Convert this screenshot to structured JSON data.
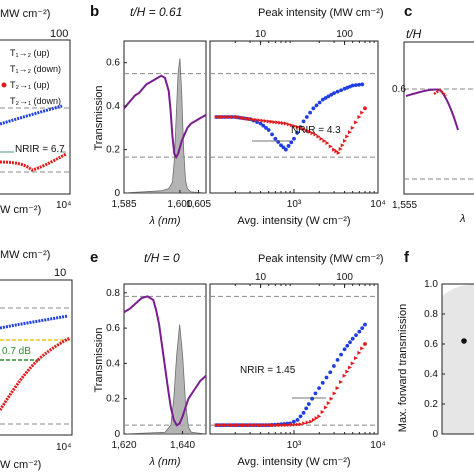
{
  "panels": {
    "b": {
      "letter": "b",
      "tH": "t/H = 0.61"
    },
    "c": {
      "letter": "c",
      "tH_prefix": "t/H"
    },
    "e": {
      "letter": "e",
      "tH": "t/H = 0"
    },
    "f": {
      "letter": "f",
      "ylabel": "Max. forward transmission",
      "yticks": [
        "0",
        "0.2",
        "0.4",
        "0.6",
        "0.8",
        "1.0"
      ]
    }
  },
  "top_left_fragment": {
    "top_axis_title": "MW cm⁻²)",
    "top_tick": "100",
    "legend": [
      "T₁→₂ (up)",
      "T₁→₂ (down)",
      "T₂→₁ (up)",
      "T₂→₁ (down)"
    ],
    "nrir": "NRIR = 6.7",
    "xlabel": "W cm⁻²)",
    "xtick": "10⁴"
  },
  "bottom_left_fragment": {
    "top_axis_title": "MW cm⁻²)",
    "top_tick": "10",
    "db_label": "0.7 dB",
    "xlabel": "W cm⁻²)",
    "xtick": "10⁴"
  },
  "panel_c_fragment": {
    "ytick": "0.6",
    "xtick": "1,555",
    "xlabel": "λ"
  },
  "colors": {
    "purple": "#7a1d8f",
    "blue": "#1f3fe0",
    "red": "#e31a1c",
    "grey": "#a8a8a8",
    "green": "#2e8b2e",
    "yellow": "#e8c21a"
  },
  "chart_data": [
    {
      "type": "line",
      "panel": "b-left",
      "xlabel": "λ (nm)",
      "ylabel": "Transmission",
      "xticks": [
        "1,585",
        "1,600",
        "1,605"
      ],
      "yticks": [
        "0",
        "0.2",
        "0.4",
        "0.6"
      ],
      "xlim": [
        1585,
        1607
      ],
      "ylim": [
        0,
        0.7
      ],
      "dashed_y": [
        0.55,
        0.165
      ],
      "transmission": {
        "x": [
          1585,
          1586,
          1587,
          1588,
          1589,
          1590,
          1591,
          1592,
          1593,
          1594,
          1595,
          1596,
          1597,
          1597.5,
          1598,
          1598.5,
          1599,
          1599.5,
          1600,
          1600.5,
          1601,
          1601.5,
          1602,
          1603,
          1604,
          1605,
          1606,
          1607
        ],
        "y": [
          0.39,
          0.41,
          0.43,
          0.45,
          0.46,
          0.48,
          0.5,
          0.51,
          0.52,
          0.53,
          0.54,
          0.53,
          0.47,
          0.38,
          0.26,
          0.18,
          0.165,
          0.18,
          0.21,
          0.24,
          0.26,
          0.28,
          0.3,
          0.32,
          0.33,
          0.34,
          0.35,
          0.36
        ]
      },
      "spectrum": {
        "x": [
          1585,
          1595,
          1597,
          1598,
          1598.5,
          1599,
          1599.5,
          1600,
          1600.5,
          1601,
          1601.5,
          1602,
          1603,
          1607
        ],
        "y": [
          0,
          0.01,
          0.02,
          0.05,
          0.15,
          0.35,
          0.55,
          0.62,
          0.45,
          0.2,
          0.06,
          0.02,
          0.005,
          0
        ]
      }
    },
    {
      "type": "scatter",
      "panel": "b-right",
      "xlabel": "Avg. intensity (W cm⁻²)",
      "top_xlabel": "Peak intensity (MW cm⁻²)",
      "top_xticks": [
        "10",
        "100"
      ],
      "xticks": [
        "10³",
        "10⁴"
      ],
      "xlog": true,
      "xlim": [
        100,
        10000
      ],
      "ylim": [
        0,
        0.7
      ],
      "dashed_y": [
        0.55,
        0.165
      ],
      "annotation": "NRIR = 4.3",
      "series": [
        {
          "x": [
            120,
            150,
            200,
            300,
            400,
            500,
            600,
            700,
            800,
            1000,
            1300,
            1700,
            2200,
            3000,
            4000,
            5000,
            6500
          ],
          "y": [
            0.35,
            0.35,
            0.35,
            0.34,
            0.32,
            0.29,
            0.25,
            0.22,
            0.2,
            0.25,
            0.33,
            0.39,
            0.43,
            0.46,
            0.48,
            0.495,
            0.5
          ]
        },
        {
          "x": [
            120,
            150,
            200,
            300,
            500,
            800,
            1200,
            1800,
            2500,
            3000,
            3400,
            3800,
            4300,
            5000,
            6000,
            7000
          ],
          "y": [
            0.35,
            0.35,
            0.35,
            0.34,
            0.33,
            0.32,
            0.3,
            0.27,
            0.23,
            0.2,
            0.185,
            0.22,
            0.26,
            0.3,
            0.35,
            0.39
          ]
        }
      ]
    },
    {
      "type": "line",
      "panel": "e-left",
      "xlabel": "λ (nm)",
      "ylabel": "Transmission",
      "xticks": [
        "1,620",
        "1,640"
      ],
      "yticks": [
        "0",
        "0.2",
        "0.4",
        "0.6",
        "0.8"
      ],
      "xlim": [
        1620,
        1648
      ],
      "ylim": [
        0,
        0.85
      ],
      "dashed_y": [
        0.78,
        0.05
      ],
      "transmission": {
        "x": [
          1620,
          1622,
          1624,
          1626,
          1628,
          1629,
          1630,
          1631,
          1632,
          1633,
          1634,
          1635,
          1636,
          1637,
          1638,
          1639,
          1640,
          1641,
          1642,
          1644,
          1646,
          1648
        ],
        "y": [
          0.69,
          0.71,
          0.74,
          0.77,
          0.78,
          0.77,
          0.76,
          0.7,
          0.62,
          0.5,
          0.38,
          0.26,
          0.15,
          0.08,
          0.05,
          0.06,
          0.1,
          0.15,
          0.2,
          0.25,
          0.3,
          0.33
        ]
      },
      "spectrum": {
        "x": [
          1620,
          1634,
          1636,
          1637,
          1638,
          1639,
          1640,
          1641,
          1642,
          1643,
          1648
        ],
        "y": [
          0,
          0.01,
          0.05,
          0.2,
          0.45,
          0.62,
          0.45,
          0.18,
          0.04,
          0.01,
          0
        ]
      }
    },
    {
      "type": "scatter",
      "panel": "e-right",
      "xlabel": "Avg. intensity (W cm⁻²)",
      "top_xlabel": "Peak intensity (MW cm⁻²)",
      "top_xticks": [
        "10",
        "100"
      ],
      "xticks": [
        "10³",
        "10⁴"
      ],
      "xlog": true,
      "xlim": [
        100,
        10000
      ],
      "ylim": [
        0,
        0.85
      ],
      "dashed_y": [
        0.78,
        0.05
      ],
      "annotation": "NRIR = 1.45",
      "series": [
        {
          "x": [
            120,
            200,
            300,
            500,
            700,
            900,
            1100,
            1300,
            1500,
            1800,
            2200,
            2700,
            3300,
            4000,
            5000,
            6000,
            7000
          ],
          "y": [
            0.05,
            0.05,
            0.05,
            0.05,
            0.055,
            0.06,
            0.08,
            0.12,
            0.17,
            0.23,
            0.29,
            0.35,
            0.42,
            0.48,
            0.54,
            0.58,
            0.62
          ]
        },
        {
          "x": [
            120,
            200,
            300,
            500,
            800,
            1200,
            1600,
            2000,
            2400,
            2800,
            3300,
            4000,
            5000,
            6000,
            7000
          ],
          "y": [
            0.05,
            0.05,
            0.05,
            0.05,
            0.05,
            0.055,
            0.07,
            0.1,
            0.15,
            0.2,
            0.26,
            0.33,
            0.4,
            0.46,
            0.51
          ]
        }
      ]
    },
    {
      "type": "scatter",
      "panel": "f",
      "ylabel": "Max. forward transmission",
      "ylim": [
        0,
        1.0
      ],
      "points": [
        {
          "y": 0.62
        }
      ]
    }
  ]
}
